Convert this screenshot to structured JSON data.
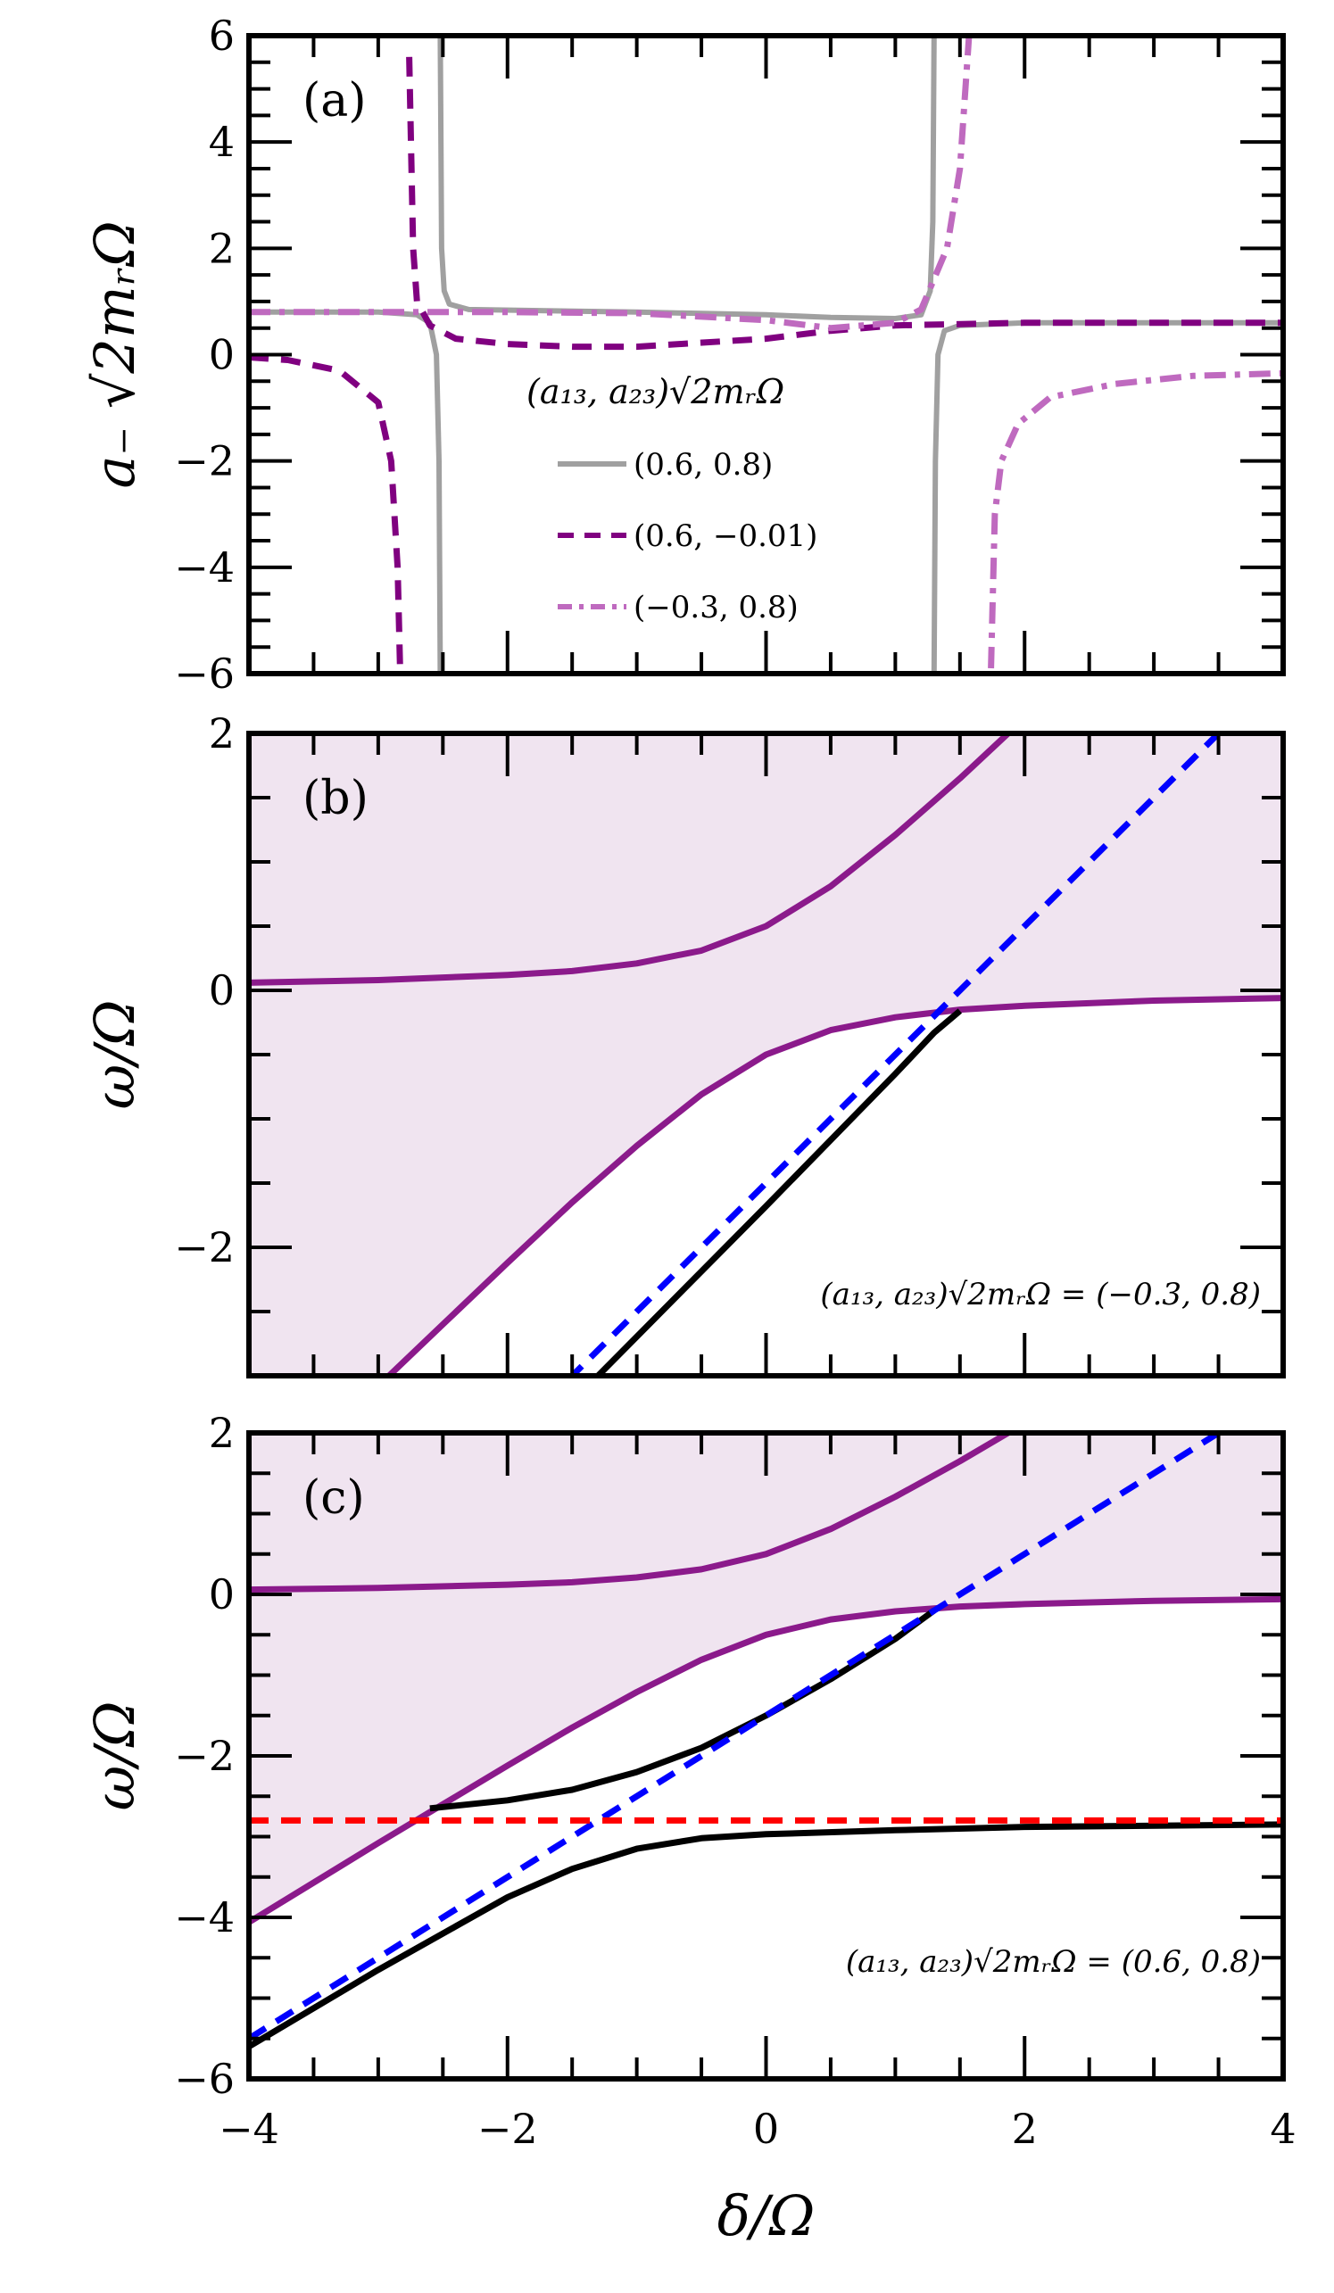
{
  "chart_data": [
    {
      "type": "line",
      "panel_label": "(a)",
      "xlim": [
        -4,
        4
      ],
      "ylim": [
        -6,
        6
      ],
      "xticks": [
        -4,
        -2,
        0,
        2,
        4
      ],
      "yticks": [
        -6,
        -4,
        -2,
        0,
        2,
        4,
        6
      ],
      "ytick_labels": [
        "−6",
        "−4",
        "−2",
        "0",
        "2",
        "4",
        "6"
      ],
      "xlabel": "",
      "ylabel": "a₋ √2mᵣΩ",
      "legend": {
        "title": "(a₁₃, a₂₃)√2mᵣΩ",
        "placement": "center"
      },
      "series": [
        {
          "name": "(0.6, 0.8)",
          "color": "#a0a0a0",
          "style": "solid",
          "segments": [
            [
              [
                -4,
                0.8
              ],
              [
                -3,
                0.8
              ],
              [
                -2.7,
                0.75
              ],
              [
                -2.6,
                0.6
              ],
              [
                -2.55,
                0
              ],
              [
                -2.53,
                -2
              ],
              [
                -2.52,
                -6
              ]
            ],
            [
              [
                -2.52,
                6
              ],
              [
                -2.51,
                2
              ],
              [
                -2.49,
                1.2
              ],
              [
                -2.45,
                0.95
              ],
              [
                -2.3,
                0.85
              ],
              [
                -1,
                0.8
              ],
              [
                0,
                0.75
              ],
              [
                0.5,
                0.7
              ],
              [
                1.0,
                0.68
              ],
              [
                1.2,
                0.75
              ],
              [
                1.27,
                1.2
              ],
              [
                1.29,
                2.5
              ],
              [
                1.3,
                6
              ]
            ],
            [
              [
                1.3,
                -6
              ],
              [
                1.31,
                -2
              ],
              [
                1.33,
                0
              ],
              [
                1.38,
                0.45
              ],
              [
                1.5,
                0.55
              ],
              [
                2,
                0.6
              ],
              [
                4,
                0.6
              ]
            ]
          ]
        },
        {
          "name": "(0.6, −0.01)",
          "color": "#800080",
          "style": "dashed",
          "segments": [
            [
              [
                -4,
                -0.05
              ],
              [
                -3.7,
                -0.1
              ],
              [
                -3.3,
                -0.3
              ],
              [
                -3.0,
                -0.9
              ],
              [
                -2.9,
                -2
              ],
              [
                -2.85,
                -4
              ],
              [
                -2.83,
                -6
              ]
            ],
            [
              [
                -2.76,
                5.6
              ],
              [
                -2.73,
                2
              ],
              [
                -2.7,
                1
              ],
              [
                -2.6,
                0.55
              ],
              [
                -2.4,
                0.3
              ],
              [
                -2,
                0.2
              ],
              [
                -1.5,
                0.15
              ],
              [
                -1,
                0.15
              ],
              [
                0,
                0.3
              ],
              [
                0.5,
                0.45
              ],
              [
                1,
                0.55
              ],
              [
                2,
                0.6
              ],
              [
                4,
                0.6
              ]
            ]
          ]
        },
        {
          "name": "(−0.3, 0.8)",
          "color": "#bf6abf",
          "style": "dashdot",
          "segments": [
            [
              [
                -4,
                0.8
              ],
              [
                -2,
                0.8
              ],
              [
                -1,
                0.78
              ],
              [
                0,
                0.65
              ],
              [
                0.5,
                0.5
              ],
              [
                1,
                0.6
              ],
              [
                1.2,
                0.85
              ],
              [
                1.4,
                2
              ],
              [
                1.5,
                3.5
              ],
              [
                1.57,
                6
              ]
            ],
            [
              [
                1.74,
                -5.9
              ],
              [
                1.77,
                -3
              ],
              [
                1.82,
                -2
              ],
              [
                1.95,
                -1.3
              ],
              [
                2.2,
                -0.8
              ],
              [
                2.7,
                -0.55
              ],
              [
                3.3,
                -0.4
              ],
              [
                4,
                -0.35
              ]
            ]
          ]
        }
      ]
    },
    {
      "type": "line",
      "panel_label": "(b)",
      "xlim": [
        -4,
        4
      ],
      "ylim": [
        -3,
        2
      ],
      "xticks": [
        -4,
        -2,
        0,
        2,
        4
      ],
      "yticks": [
        -2,
        0,
        2
      ],
      "ytick_labels": [
        "−2",
        "0",
        "2"
      ],
      "xlabel": "",
      "ylabel": "ω/Ω",
      "annotation": "(a₁₃, a₂₃)√2mᵣΩ = (−0.3, 0.8)",
      "shaded_color": "#f0e4f0",
      "series": [
        {
          "role": "continuum-upper",
          "color": "#8b1a8b",
          "style": "solid",
          "points": [
            [
              -4,
              0.06
            ],
            [
              -3,
              0.08
            ],
            [
              -2,
              0.12
            ],
            [
              -1.5,
              0.15
            ],
            [
              -1,
              0.21
            ],
            [
              -0.5,
              0.31
            ],
            [
              0,
              0.5
            ],
            [
              0.5,
              0.81
            ],
            [
              1,
              1.21
            ],
            [
              1.5,
              1.65
            ],
            [
              2,
              2.12
            ]
          ]
        },
        {
          "role": "continuum-lower",
          "color": "#8b1a8b",
          "style": "solid",
          "points": [
            [
              -4,
              -4.06
            ],
            [
              -3,
              -3.08
            ],
            [
              -2.5,
              -2.6
            ],
            [
              -2,
              -2.12
            ],
            [
              -1.5,
              -1.65
            ],
            [
              -1,
              -1.21
            ],
            [
              -0.5,
              -0.81
            ],
            [
              0,
              -0.5
            ],
            [
              0.5,
              -0.31
            ],
            [
              1,
              -0.21
            ],
            [
              1.5,
              -0.15
            ],
            [
              2,
              -0.12
            ],
            [
              3,
              -0.08
            ],
            [
              4,
              -0.06
            ]
          ]
        },
        {
          "role": "bound-state",
          "color": "#000000",
          "style": "solid",
          "points": [
            [
              -1.3,
              -3
            ],
            [
              0,
              -1.68
            ],
            [
              1,
              -0.65
            ],
            [
              1.3,
              -0.33
            ],
            [
              1.5,
              -0.16
            ]
          ]
        },
        {
          "role": "asymptote",
          "color": "#0000ff",
          "style": "dashed",
          "points": [
            [
              -4,
              -5.5
            ],
            [
              3.5,
              2
            ]
          ]
        }
      ]
    },
    {
      "type": "line",
      "panel_label": "(c)",
      "xlim": [
        -4,
        4
      ],
      "ylim": [
        -6,
        2
      ],
      "xticks": [
        -4,
        -2,
        0,
        2,
        4
      ],
      "xtick_labels": [
        "−4",
        "−2",
        "0",
        "2",
        "4"
      ],
      "yticks": [
        -6,
        -4,
        -2,
        0,
        2
      ],
      "ytick_labels": [
        "−6",
        "−4",
        "−2",
        "0",
        "2"
      ],
      "xlabel": "δ/Ω",
      "ylabel": "ω/Ω",
      "annotation": "(a₁₃, a₂₃)√2mᵣΩ = (0.6, 0.8)",
      "shaded_color": "#f0e4f0",
      "series": [
        {
          "role": "continuum-upper",
          "color": "#8b1a8b",
          "style": "solid",
          "points": [
            [
              -4,
              0.06
            ],
            [
              -3,
              0.08
            ],
            [
              -2,
              0.12
            ],
            [
              -1.5,
              0.15
            ],
            [
              -1,
              0.21
            ],
            [
              -0.5,
              0.31
            ],
            [
              0,
              0.5
            ],
            [
              0.5,
              0.81
            ],
            [
              1,
              1.21
            ],
            [
              1.5,
              1.65
            ],
            [
              2,
              2.12
            ]
          ]
        },
        {
          "role": "continuum-lower",
          "color": "#8b1a8b",
          "style": "solid",
          "points": [
            [
              -4,
              -4.06
            ],
            [
              -3,
              -3.08
            ],
            [
              -2.5,
              -2.6
            ],
            [
              -2,
              -2.12
            ],
            [
              -1.5,
              -1.65
            ],
            [
              -1,
              -1.21
            ],
            [
              -0.5,
              -0.81
            ],
            [
              0,
              -0.5
            ],
            [
              0.5,
              -0.31
            ],
            [
              1,
              -0.21
            ],
            [
              1.5,
              -0.15
            ],
            [
              2,
              -0.12
            ],
            [
              3,
              -0.08
            ],
            [
              4,
              -0.06
            ]
          ]
        },
        {
          "role": "bound-state-upper",
          "color": "#000000",
          "style": "solid",
          "points": [
            [
              -2.6,
              -2.65
            ],
            [
              -2,
              -2.55
            ],
            [
              -1.5,
              -2.42
            ],
            [
              -1,
              -2.2
            ],
            [
              -0.5,
              -1.9
            ],
            [
              0,
              -1.5
            ],
            [
              0.5,
              -1.05
            ],
            [
              1,
              -0.55
            ],
            [
              1.3,
              -0.2
            ]
          ]
        },
        {
          "role": "bound-state-lower",
          "color": "#000000",
          "style": "solid",
          "points": [
            [
              -4,
              -5.6
            ],
            [
              -3,
              -4.65
            ],
            [
              -2,
              -3.75
            ],
            [
              -1.5,
              -3.4
            ],
            [
              -1,
              -3.15
            ],
            [
              -0.5,
              -3.02
            ],
            [
              0,
              -2.97
            ],
            [
              1,
              -2.92
            ],
            [
              2,
              -2.88
            ],
            [
              4,
              -2.85
            ]
          ]
        },
        {
          "role": "asymptote",
          "color": "#0000ff",
          "style": "dashed",
          "points": [
            [
              -4,
              -5.5
            ],
            [
              3.5,
              2
            ]
          ]
        },
        {
          "role": "threshold",
          "color": "#ff0000",
          "style": "dashed",
          "points": [
            [
              -4,
              -2.8
            ],
            [
              4,
              -2.8
            ]
          ]
        }
      ]
    }
  ]
}
